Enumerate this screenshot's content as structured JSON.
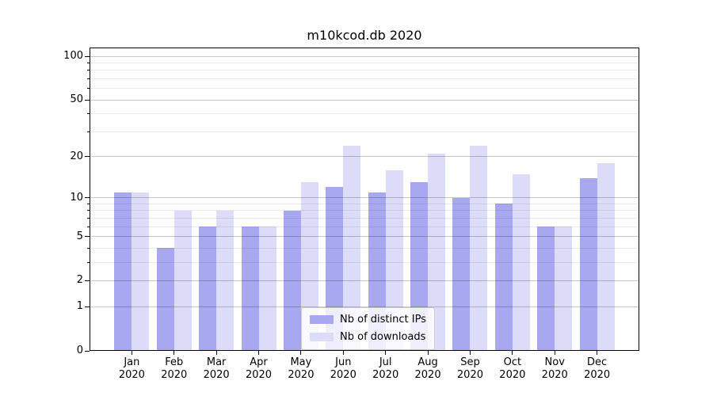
{
  "chart_data": {
    "type": "bar",
    "title": "m10kcod.db 2020",
    "categories": [
      "Jan",
      "Feb",
      "Mar",
      "Apr",
      "May",
      "Jun",
      "Jul",
      "Aug",
      "Sep",
      "Oct",
      "Nov",
      "Dec"
    ],
    "year_label": "2020",
    "series": [
      {
        "name": "Nb of distinct IPs",
        "color": "#a8a8f1",
        "values": [
          11,
          4,
          6,
          6,
          8,
          12,
          11,
          13,
          10,
          9,
          6,
          14
        ]
      },
      {
        "name": "Nb of downloads",
        "color": "#dcdcf8",
        "values": [
          11,
          8,
          8,
          6,
          13,
          24,
          16,
          21,
          24,
          15,
          6,
          18
        ]
      }
    ],
    "xlabel": "",
    "ylabel": "",
    "y_scale": "log10(value+1)",
    "ylim": [
      0,
      115
    ],
    "y_major_ticks": [
      0,
      1,
      2,
      5,
      10,
      20,
      50,
      100
    ],
    "y_minor_ticks": [
      3,
      4,
      6,
      7,
      8,
      9,
      30,
      40,
      60,
      70,
      80,
      90
    ],
    "grid": "both",
    "legend_position": "lower center",
    "colors": {
      "major_grid": "rgba(0,0,0,0.22)",
      "minor_grid": "rgba(0,0,0,0.08)",
      "spine": "#000000",
      "text": "#000000",
      "background": "#ffffff"
    }
  }
}
